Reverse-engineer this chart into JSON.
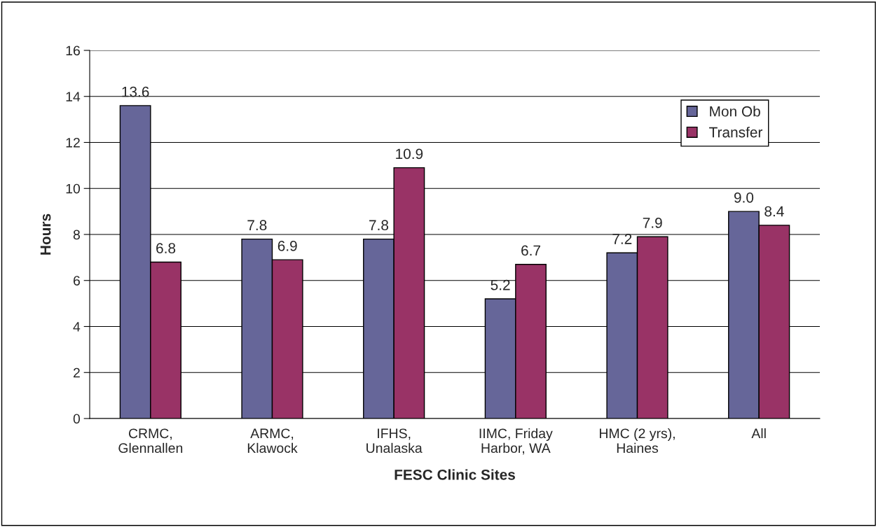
{
  "chart_data": {
    "type": "bar",
    "xlabel": "FESC Clinic Sites",
    "ylabel": "Hours",
    "categories": [
      "CRMC,\nGlennallen",
      "ARMC,\nKlawock",
      "IFHS,\nUnalaska",
      "IIMC, Friday\nHarbor, WA",
      "HMC (2 yrs),\nHaines",
      "All"
    ],
    "series": [
      {
        "name": "Mon Ob",
        "color": "#666699",
        "values": [
          13.6,
          7.8,
          7.8,
          5.2,
          7.2,
          9.0
        ],
        "value_labels": [
          "13.6",
          "7.8",
          "7.8",
          "5.2",
          "7.2",
          "9.0"
        ]
      },
      {
        "name": "Transfer",
        "color": "#993366",
        "values": [
          6.8,
          6.9,
          10.9,
          6.7,
          7.9,
          8.4
        ],
        "value_labels": [
          "6.8",
          "6.9",
          "10.9",
          "6.7",
          "7.9",
          "8.4"
        ]
      }
    ],
    "ylim": [
      0,
      16
    ],
    "yticks": [
      0,
      2,
      4,
      6,
      8,
      10,
      12,
      14,
      16
    ],
    "grid": "y",
    "legend": "top right"
  }
}
